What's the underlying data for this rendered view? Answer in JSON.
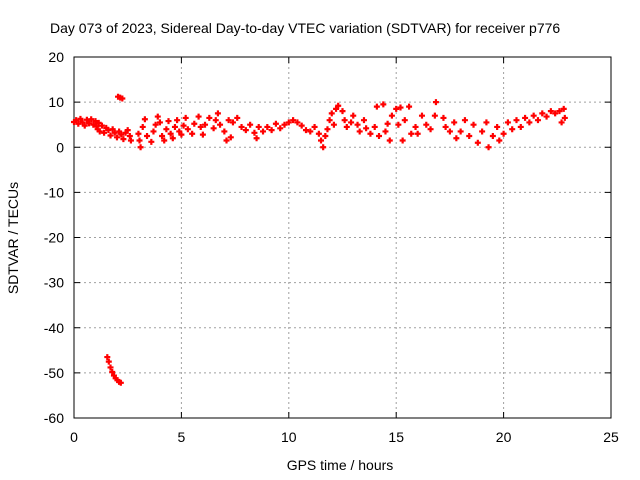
{
  "chart_data": {
    "type": "scatter",
    "title": "Day 073 of 2023, Sidereal Day-to-day VTEC variation (SDTVAR) for receiver p776",
    "xlabel": "GPS time / hours",
    "ylabel": "SDTVAR / TECUs",
    "xlim": [
      0,
      25
    ],
    "ylim": [
      -60,
      20
    ],
    "xticks": [
      0,
      5,
      10,
      15,
      20,
      25
    ],
    "yticks": [
      -60,
      -50,
      -40,
      -30,
      -20,
      -10,
      0,
      10,
      20
    ],
    "grid": true,
    "legend": "none",
    "marker": "plus",
    "color": "#ff0000",
    "series": [
      {
        "name": "SDTVAR",
        "points": [
          [
            0.0,
            5.6
          ],
          [
            0.1,
            6.0
          ],
          [
            0.2,
            5.2
          ],
          [
            0.3,
            6.3
          ],
          [
            0.4,
            5.5
          ],
          [
            0.5,
            4.8
          ],
          [
            0.6,
            6.1
          ],
          [
            0.7,
            5.3
          ],
          [
            0.8,
            6.2
          ],
          [
            0.9,
            5.0
          ],
          [
            1.0,
            5.8
          ],
          [
            1.05,
            4.6
          ],
          [
            1.1,
            4.0
          ],
          [
            1.15,
            5.4
          ],
          [
            1.2,
            3.5
          ],
          [
            1.3,
            4.8
          ],
          [
            1.4,
            3.2
          ],
          [
            1.5,
            4.3
          ],
          [
            1.6,
            3.8
          ],
          [
            1.7,
            2.6
          ],
          [
            1.8,
            4.0
          ],
          [
            1.9,
            3.2
          ],
          [
            2.0,
            2.2
          ],
          [
            2.1,
            3.5
          ],
          [
            2.2,
            2.8
          ],
          [
            2.3,
            1.8
          ],
          [
            2.4,
            3.2
          ],
          [
            2.5,
            3.8
          ],
          [
            2.6,
            2.5
          ],
          [
            2.65,
            1.5
          ],
          [
            2.05,
            11.2
          ],
          [
            2.15,
            11.0
          ],
          [
            2.25,
            10.8
          ],
          [
            3.0,
            3.0
          ],
          [
            3.05,
            1.5
          ],
          [
            3.1,
            0.0
          ],
          [
            3.2,
            4.5
          ],
          [
            3.3,
            6.2
          ],
          [
            3.4,
            2.5
          ],
          [
            3.6,
            1.2
          ],
          [
            3.7,
            3.5
          ],
          [
            3.8,
            5.0
          ],
          [
            3.9,
            6.8
          ],
          [
            4.0,
            5.5
          ],
          [
            4.1,
            2.5
          ],
          [
            4.2,
            1.5
          ],
          [
            4.3,
            4.0
          ],
          [
            4.4,
            5.8
          ],
          [
            4.5,
            3.0
          ],
          [
            4.6,
            2.0
          ],
          [
            4.7,
            4.5
          ],
          [
            4.8,
            6.0
          ],
          [
            4.9,
            3.5
          ],
          [
            5.0,
            2.8
          ],
          [
            5.1,
            4.8
          ],
          [
            5.2,
            6.5
          ],
          [
            5.3,
            4.0
          ],
          [
            5.5,
            3.0
          ],
          [
            5.6,
            5.2
          ],
          [
            5.8,
            6.8
          ],
          [
            5.9,
            4.5
          ],
          [
            6.0,
            2.8
          ],
          [
            6.1,
            5.0
          ],
          [
            6.3,
            6.5
          ],
          [
            6.5,
            4.2
          ],
          [
            6.6,
            6.0
          ],
          [
            6.7,
            7.5
          ],
          [
            6.8,
            5.0
          ],
          [
            7.0,
            3.5
          ],
          [
            7.2,
            6.0
          ],
          [
            7.4,
            5.5
          ],
          [
            7.6,
            6.5
          ],
          [
            7.8,
            4.5
          ],
          [
            7.1,
            1.5
          ],
          [
            7.3,
            2.2
          ],
          [
            8.0,
            3.8
          ],
          [
            8.2,
            5.0
          ],
          [
            8.4,
            3.2
          ],
          [
            8.5,
            2.0
          ],
          [
            8.6,
            4.5
          ],
          [
            8.8,
            3.5
          ],
          [
            9.0,
            4.5
          ],
          [
            9.2,
            3.8
          ],
          [
            9.4,
            5.2
          ],
          [
            9.6,
            4.2
          ],
          [
            9.8,
            5.0
          ],
          [
            10.0,
            5.5
          ],
          [
            10.2,
            6.0
          ],
          [
            10.4,
            5.5
          ],
          [
            10.6,
            4.8
          ],
          [
            10.8,
            3.8
          ],
          [
            11.0,
            3.5
          ],
          [
            11.2,
            4.5
          ],
          [
            11.4,
            3.0
          ],
          [
            11.5,
            1.5
          ],
          [
            11.6,
            0.0
          ],
          [
            11.7,
            2.5
          ],
          [
            11.8,
            4.0
          ],
          [
            11.9,
            6.0
          ],
          [
            12.0,
            7.5
          ],
          [
            12.1,
            5.0
          ],
          [
            12.2,
            8.5
          ],
          [
            12.3,
            9.2
          ],
          [
            12.5,
            8.0
          ],
          [
            12.6,
            6.0
          ],
          [
            12.7,
            4.5
          ],
          [
            12.9,
            5.5
          ],
          [
            13.0,
            7.0
          ],
          [
            13.2,
            5.0
          ],
          [
            13.3,
            3.5
          ],
          [
            13.5,
            6.0
          ],
          [
            13.6,
            4.2
          ],
          [
            13.8,
            3.0
          ],
          [
            14.0,
            4.5
          ],
          [
            14.1,
            9.0
          ],
          [
            14.2,
            2.5
          ],
          [
            14.4,
            9.5
          ],
          [
            14.5,
            3.5
          ],
          [
            14.6,
            5.2
          ],
          [
            14.7,
            1.5
          ],
          [
            14.8,
            7.0
          ],
          [
            15.0,
            8.5
          ],
          [
            15.1,
            5.0
          ],
          [
            15.2,
            8.8
          ],
          [
            15.3,
            1.5
          ],
          [
            15.4,
            6.0
          ],
          [
            15.6,
            9.0
          ],
          [
            15.7,
            3.0
          ],
          [
            15.9,
            4.5
          ],
          [
            16.0,
            3.0
          ],
          [
            16.2,
            7.0
          ],
          [
            16.4,
            5.0
          ],
          [
            16.6,
            4.0
          ],
          [
            16.8,
            7.0
          ],
          [
            16.85,
            10.0
          ],
          [
            17.2,
            6.5
          ],
          [
            17.3,
            4.5
          ],
          [
            17.5,
            3.5
          ],
          [
            17.7,
            5.5
          ],
          [
            17.8,
            2.0
          ],
          [
            18.0,
            3.5
          ],
          [
            18.2,
            6.0
          ],
          [
            18.4,
            2.5
          ],
          [
            18.6,
            5.0
          ],
          [
            18.8,
            1.0
          ],
          [
            19.0,
            3.5
          ],
          [
            19.2,
            5.5
          ],
          [
            19.3,
            0.0
          ],
          [
            19.5,
            2.5
          ],
          [
            19.7,
            4.5
          ],
          [
            19.8,
            1.5
          ],
          [
            20.0,
            3.0
          ],
          [
            20.2,
            5.5
          ],
          [
            20.4,
            4.0
          ],
          [
            20.6,
            6.0
          ],
          [
            20.8,
            4.5
          ],
          [
            21.0,
            6.5
          ],
          [
            21.2,
            5.5
          ],
          [
            21.4,
            7.0
          ],
          [
            21.6,
            6.0
          ],
          [
            21.8,
            7.5
          ],
          [
            22.0,
            6.8
          ],
          [
            22.2,
            8.0
          ],
          [
            22.4,
            7.5
          ],
          [
            22.6,
            8.0
          ],
          [
            22.7,
            5.5
          ],
          [
            22.8,
            8.5
          ],
          [
            22.85,
            6.5
          ],
          [
            1.55,
            -46.5
          ],
          [
            1.62,
            -47.5
          ],
          [
            1.7,
            -48.8
          ],
          [
            1.78,
            -49.8
          ],
          [
            1.86,
            -50.6
          ],
          [
            1.94,
            -51.2
          ],
          [
            2.02,
            -51.6
          ],
          [
            2.1,
            -52.0
          ],
          [
            2.18,
            -52.2
          ]
        ]
      }
    ]
  }
}
